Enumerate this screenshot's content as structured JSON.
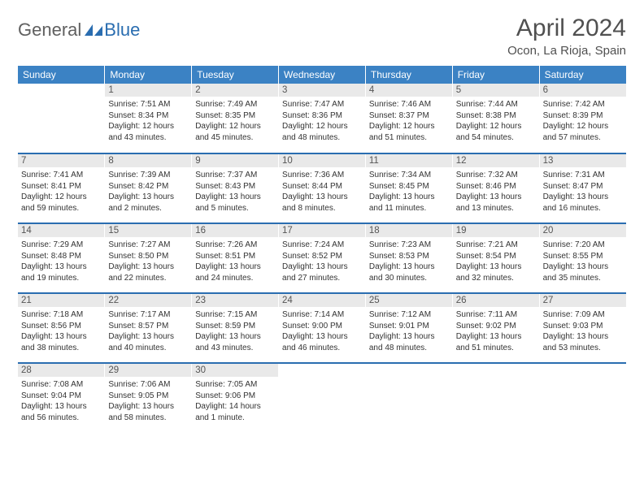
{
  "brand": {
    "general": "General",
    "blue": "Blue"
  },
  "title": "April 2024",
  "location": "Ocon, La Rioja, Spain",
  "colors": {
    "header_bg": "#3b82c4",
    "row_divider": "#2a6db0",
    "daynum_bg": "#e9e9e9",
    "text": "#333333"
  },
  "weekdays": [
    "Sunday",
    "Monday",
    "Tuesday",
    "Wednesday",
    "Thursday",
    "Friday",
    "Saturday"
  ],
  "weeks": [
    [
      {
        "empty": true
      },
      {
        "n": "1",
        "sr": "Sunrise: 7:51 AM",
        "ss": "Sunset: 8:34 PM",
        "d1": "Daylight: 12 hours",
        "d2": "and 43 minutes."
      },
      {
        "n": "2",
        "sr": "Sunrise: 7:49 AM",
        "ss": "Sunset: 8:35 PM",
        "d1": "Daylight: 12 hours",
        "d2": "and 45 minutes."
      },
      {
        "n": "3",
        "sr": "Sunrise: 7:47 AM",
        "ss": "Sunset: 8:36 PM",
        "d1": "Daylight: 12 hours",
        "d2": "and 48 minutes."
      },
      {
        "n": "4",
        "sr": "Sunrise: 7:46 AM",
        "ss": "Sunset: 8:37 PM",
        "d1": "Daylight: 12 hours",
        "d2": "and 51 minutes."
      },
      {
        "n": "5",
        "sr": "Sunrise: 7:44 AM",
        "ss": "Sunset: 8:38 PM",
        "d1": "Daylight: 12 hours",
        "d2": "and 54 minutes."
      },
      {
        "n": "6",
        "sr": "Sunrise: 7:42 AM",
        "ss": "Sunset: 8:39 PM",
        "d1": "Daylight: 12 hours",
        "d2": "and 57 minutes."
      }
    ],
    [
      {
        "n": "7",
        "sr": "Sunrise: 7:41 AM",
        "ss": "Sunset: 8:41 PM",
        "d1": "Daylight: 12 hours",
        "d2": "and 59 minutes."
      },
      {
        "n": "8",
        "sr": "Sunrise: 7:39 AM",
        "ss": "Sunset: 8:42 PM",
        "d1": "Daylight: 13 hours",
        "d2": "and 2 minutes."
      },
      {
        "n": "9",
        "sr": "Sunrise: 7:37 AM",
        "ss": "Sunset: 8:43 PM",
        "d1": "Daylight: 13 hours",
        "d2": "and 5 minutes."
      },
      {
        "n": "10",
        "sr": "Sunrise: 7:36 AM",
        "ss": "Sunset: 8:44 PM",
        "d1": "Daylight: 13 hours",
        "d2": "and 8 minutes."
      },
      {
        "n": "11",
        "sr": "Sunrise: 7:34 AM",
        "ss": "Sunset: 8:45 PM",
        "d1": "Daylight: 13 hours",
        "d2": "and 11 minutes."
      },
      {
        "n": "12",
        "sr": "Sunrise: 7:32 AM",
        "ss": "Sunset: 8:46 PM",
        "d1": "Daylight: 13 hours",
        "d2": "and 13 minutes."
      },
      {
        "n": "13",
        "sr": "Sunrise: 7:31 AM",
        "ss": "Sunset: 8:47 PM",
        "d1": "Daylight: 13 hours",
        "d2": "and 16 minutes."
      }
    ],
    [
      {
        "n": "14",
        "sr": "Sunrise: 7:29 AM",
        "ss": "Sunset: 8:48 PM",
        "d1": "Daylight: 13 hours",
        "d2": "and 19 minutes."
      },
      {
        "n": "15",
        "sr": "Sunrise: 7:27 AM",
        "ss": "Sunset: 8:50 PM",
        "d1": "Daylight: 13 hours",
        "d2": "and 22 minutes."
      },
      {
        "n": "16",
        "sr": "Sunrise: 7:26 AM",
        "ss": "Sunset: 8:51 PM",
        "d1": "Daylight: 13 hours",
        "d2": "and 24 minutes."
      },
      {
        "n": "17",
        "sr": "Sunrise: 7:24 AM",
        "ss": "Sunset: 8:52 PM",
        "d1": "Daylight: 13 hours",
        "d2": "and 27 minutes."
      },
      {
        "n": "18",
        "sr": "Sunrise: 7:23 AM",
        "ss": "Sunset: 8:53 PM",
        "d1": "Daylight: 13 hours",
        "d2": "and 30 minutes."
      },
      {
        "n": "19",
        "sr": "Sunrise: 7:21 AM",
        "ss": "Sunset: 8:54 PM",
        "d1": "Daylight: 13 hours",
        "d2": "and 32 minutes."
      },
      {
        "n": "20",
        "sr": "Sunrise: 7:20 AM",
        "ss": "Sunset: 8:55 PM",
        "d1": "Daylight: 13 hours",
        "d2": "and 35 minutes."
      }
    ],
    [
      {
        "n": "21",
        "sr": "Sunrise: 7:18 AM",
        "ss": "Sunset: 8:56 PM",
        "d1": "Daylight: 13 hours",
        "d2": "and 38 minutes."
      },
      {
        "n": "22",
        "sr": "Sunrise: 7:17 AM",
        "ss": "Sunset: 8:57 PM",
        "d1": "Daylight: 13 hours",
        "d2": "and 40 minutes."
      },
      {
        "n": "23",
        "sr": "Sunrise: 7:15 AM",
        "ss": "Sunset: 8:59 PM",
        "d1": "Daylight: 13 hours",
        "d2": "and 43 minutes."
      },
      {
        "n": "24",
        "sr": "Sunrise: 7:14 AM",
        "ss": "Sunset: 9:00 PM",
        "d1": "Daylight: 13 hours",
        "d2": "and 46 minutes."
      },
      {
        "n": "25",
        "sr": "Sunrise: 7:12 AM",
        "ss": "Sunset: 9:01 PM",
        "d1": "Daylight: 13 hours",
        "d2": "and 48 minutes."
      },
      {
        "n": "26",
        "sr": "Sunrise: 7:11 AM",
        "ss": "Sunset: 9:02 PM",
        "d1": "Daylight: 13 hours",
        "d2": "and 51 minutes."
      },
      {
        "n": "27",
        "sr": "Sunrise: 7:09 AM",
        "ss": "Sunset: 9:03 PM",
        "d1": "Daylight: 13 hours",
        "d2": "and 53 minutes."
      }
    ],
    [
      {
        "n": "28",
        "sr": "Sunrise: 7:08 AM",
        "ss": "Sunset: 9:04 PM",
        "d1": "Daylight: 13 hours",
        "d2": "and 56 minutes."
      },
      {
        "n": "29",
        "sr": "Sunrise: 7:06 AM",
        "ss": "Sunset: 9:05 PM",
        "d1": "Daylight: 13 hours",
        "d2": "and 58 minutes."
      },
      {
        "n": "30",
        "sr": "Sunrise: 7:05 AM",
        "ss": "Sunset: 9:06 PM",
        "d1": "Daylight: 14 hours",
        "d2": "and 1 minute."
      },
      {
        "empty": true
      },
      {
        "empty": true
      },
      {
        "empty": true
      },
      {
        "empty": true
      }
    ]
  ]
}
